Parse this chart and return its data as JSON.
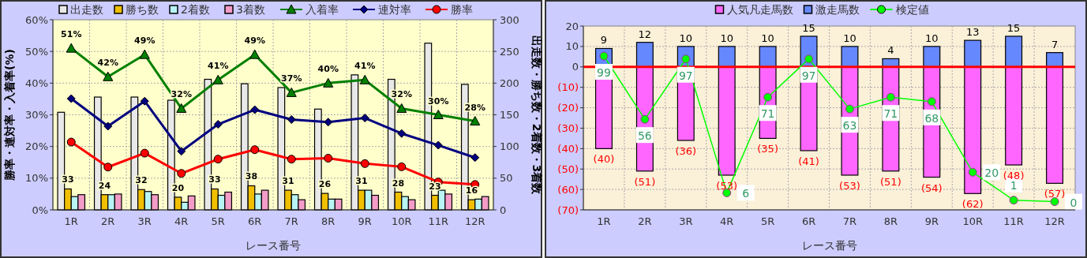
{
  "chart_data": [
    {
      "type": "bar",
      "xlabel": "レース番号",
      "ylabel": "勝率・連対率・入着率(%)",
      "y2label": "出走数・勝ち数・2着数・3着数",
      "categories": [
        "1R",
        "2R",
        "3R",
        "4R",
        "5R",
        "6R",
        "7R",
        "8R",
        "9R",
        "10R",
        "11R",
        "12R"
      ],
      "ylim": [
        0,
        60
      ],
      "yticks": [
        {
          "value": 0,
          "label": "0%"
        },
        {
          "value": 10,
          "label": "10%"
        },
        {
          "value": 20,
          "label": "20%"
        },
        {
          "value": 30,
          "label": "30%"
        },
        {
          "value": 40,
          "label": "40%"
        },
        {
          "value": 50,
          "label": "50%"
        },
        {
          "value": 60,
          "label": "60%"
        }
      ],
      "y2lim": [
        0,
        300
      ],
      "y2ticks": [
        0,
        50,
        100,
        150,
        200,
        250,
        300
      ],
      "grid": true,
      "legend": "top",
      "series": [
        {
          "name": "出走数",
          "axis": "y2",
          "color": "#e8e8e8",
          "values": [
            154,
            178,
            178,
            173,
            206,
            199,
            193,
            159,
            213,
            206,
            263,
            198
          ]
        },
        {
          "name": "勝ち数",
          "axis": "y2",
          "color": "#f0c000",
          "values": [
            33,
            24,
            32,
            20,
            33,
            38,
            31,
            26,
            31,
            28,
            23,
            16
          ],
          "value_labels": [
            "33",
            "24",
            "32",
            "20",
            "33",
            "38",
            "31",
            "26",
            "31",
            "28",
            "23",
            "16"
          ]
        },
        {
          "name": "2着数",
          "axis": "y2",
          "color": "#b8f4f4",
          "values": [
            21,
            24,
            29,
            12,
            23,
            25,
            24,
            17,
            31,
            21,
            31,
            17
          ]
        },
        {
          "name": "3着数",
          "axis": "y2",
          "color": "#f49cc8",
          "values": [
            24,
            25,
            24,
            22,
            28,
            31,
            16,
            17,
            23,
            16,
            25,
            21
          ]
        },
        {
          "name": "入着率",
          "type": "line",
          "color": "#008000",
          "marker": "triangle",
          "values": [
            51,
            42,
            49,
            32,
            41,
            49,
            37,
            40,
            41,
            32,
            30,
            28
          ],
          "value_labels": [
            "51%",
            "42%",
            "49%",
            "32%",
            "41%",
            "49%",
            "37%",
            "40%",
            "41%",
            "32%",
            "30%",
            "28%"
          ]
        },
        {
          "name": "連対率",
          "type": "line",
          "color": "#000080",
          "marker": "diamond",
          "values": [
            35.1,
            26.4,
            34.3,
            18.5,
            27.0,
            31.6,
            28.5,
            27.7,
            29.0,
            24.1,
            20.4,
            16.5
          ]
        },
        {
          "name": "勝率",
          "type": "line",
          "color": "#ff0000",
          "marker": "circle",
          "values": [
            21.4,
            13.5,
            17.9,
            11.5,
            16.0,
            19.0,
            16.0,
            16.3,
            14.6,
            13.6,
            8.8,
            8.0
          ]
        }
      ]
    },
    {
      "type": "bar",
      "xlabel": "レース番号",
      "stacked": true,
      "categories": [
        "1R",
        "2R",
        "3R",
        "4R",
        "5R",
        "6R",
        "7R",
        "8R",
        "9R",
        "10R",
        "11R",
        "12R"
      ],
      "ylim": [
        -70,
        20
      ],
      "yticks": [
        {
          "value": -70,
          "label": "(70)"
        },
        {
          "value": -60,
          "label": "(60)"
        },
        {
          "value": -50,
          "label": "(50)"
        },
        {
          "value": -40,
          "label": "(40)"
        },
        {
          "value": -30,
          "label": "(30)"
        },
        {
          "value": -20,
          "label": "(20)"
        },
        {
          "value": -10,
          "label": "(10)"
        },
        0,
        10,
        20
      ],
      "y2lim": [
        -5.6,
        119.4
      ],
      "grid": true,
      "legend": "top",
      "ref_lines": [
        {
          "axis": "y",
          "value": 0,
          "color": "#ff0000"
        }
      ],
      "series": [
        {
          "name": "人気凡走馬数",
          "color": "#ff66ff",
          "values": [
            -40,
            -51,
            -36,
            -53,
            -35,
            -41,
            -53,
            -51,
            -54,
            -62,
            -48,
            -57
          ],
          "value_labels": [
            "(40)",
            "(51)",
            "(36)",
            "(53)",
            "(35)",
            "(41)",
            "(53)",
            "(51)",
            "(54)",
            "(62)",
            "(48)",
            "(57)"
          ]
        },
        {
          "name": "激走馬数",
          "color": "#6688ff",
          "values": [
            9,
            12,
            10,
            10,
            10,
            15,
            10,
            4,
            10,
            13,
            15,
            7
          ],
          "value_labels": [
            "9",
            "12",
            "10",
            "10",
            "10",
            "15",
            "10",
            "4",
            "10",
            "13",
            "15",
            "7"
          ]
        },
        {
          "name": "検定値",
          "type": "line",
          "axis": "y2",
          "color": "#00ff00",
          "marker": "circle",
          "values": [
            99,
            56,
            97,
            6,
            71,
            97,
            63,
            71,
            68,
            20,
            1,
            0
          ],
          "value_labels": [
            "99",
            "56",
            "97",
            "6",
            "71",
            "97",
            "63",
            "71",
            "68",
            "20",
            "1",
            "0"
          ]
        }
      ]
    }
  ]
}
